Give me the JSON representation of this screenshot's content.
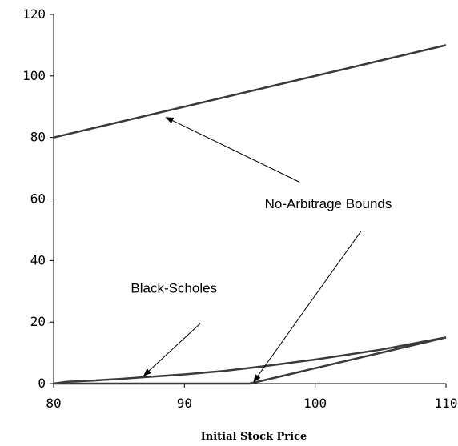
{
  "chart_data": {
    "type": "line",
    "title": "",
    "xlabel": "Initial Stock Price",
    "ylabel": "",
    "xlim": [
      80,
      110
    ],
    "ylim": [
      0,
      120
    ],
    "x_ticks": [
      80,
      90,
      100,
      110
    ],
    "y_ticks": [
      0,
      20,
      40,
      60,
      80,
      100,
      120
    ],
    "x_tick_labels": [
      "80",
      "90",
      "100",
      "110"
    ],
    "y_tick_labels": [
      "0",
      "20",
      "40",
      "60",
      "80",
      "100",
      "120"
    ],
    "grid": false,
    "legend": "none",
    "series": [
      {
        "x": [
          80,
          110
        ],
        "y": [
          80,
          110
        ]
      },
      {
        "x": [
          80,
          81,
          83,
          85,
          87,
          90,
          93,
          96,
          100,
          105,
          110
        ],
        "y": [
          0,
          0.6,
          1.0,
          1.5,
          2.1,
          3.0,
          4.1,
          5.6,
          7.8,
          11.0,
          15.0
        ]
      },
      {
        "x": [
          80,
          95,
          110
        ],
        "y": [
          0,
          0,
          15
        ]
      }
    ],
    "annotations": [
      {
        "text": "No-Arbitrage Bounds",
        "at": [
          101,
          57
        ],
        "arrows": [
          {
            "from": [
              98.8,
              65.5
            ],
            "to": [
              88.6,
              86.5
            ]
          },
          {
            "from": [
              103.5,
              49.5
            ],
            "to": [
              95.3,
              0.6
            ]
          }
        ]
      },
      {
        "text": "Black-Scholes",
        "at": [
          89.2,
          29.5
        ],
        "arrows": [
          {
            "from": [
              91.2,
              19.5
            ],
            "to": [
              86.9,
              2.6
            ]
          }
        ]
      }
    ]
  }
}
